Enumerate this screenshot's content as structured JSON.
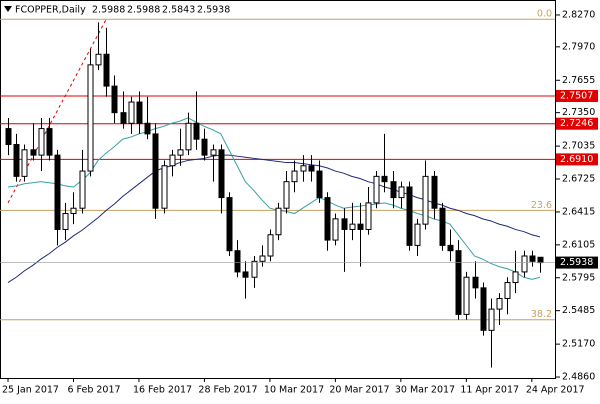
{
  "chart_data": {
    "type": "candlestick",
    "symbol": "FCOPPER,Daily",
    "categories": [
      "25 Jan 2017",
      null,
      null,
      null,
      null,
      null,
      null,
      null,
      "6 Feb 2017",
      null,
      null,
      null,
      null,
      null,
      null,
      null,
      "16 Feb 2017",
      null,
      null,
      null,
      null,
      null,
      null,
      null,
      "28 Feb 2017",
      null,
      null,
      null,
      null,
      null,
      null,
      null,
      "10 Mar 2017",
      null,
      null,
      null,
      null,
      null,
      null,
      null,
      "20 Mar 2017",
      null,
      null,
      null,
      null,
      null,
      null,
      null,
      "30 Mar 2017",
      null,
      null,
      null,
      null,
      null,
      null,
      null,
      "11 Apr 2017",
      null,
      null,
      null,
      null,
      null,
      null,
      null,
      "24 Apr 2017",
      null
    ],
    "open": [
      2.72,
      2.705,
      2.675,
      2.7,
      2.695,
      2.72,
      2.695,
      2.625,
      2.64,
      2.645,
      2.68,
      2.78,
      2.79,
      2.76,
      2.735,
      2.725,
      2.745,
      2.725,
      2.715,
      2.645,
      2.685,
      2.695,
      2.7,
      2.725,
      2.71,
      2.695,
      2.7,
      2.655,
      2.605,
      2.585,
      2.58,
      2.595,
      2.6,
      2.62,
      2.645,
      2.67,
      2.68,
      2.685,
      2.68,
      2.655,
      2.615,
      2.635,
      2.625,
      2.63,
      2.625,
      2.65,
      2.675,
      2.67,
      2.655,
      2.665,
      2.61,
      2.63,
      2.675,
      2.645,
      2.61,
      2.605,
      2.545,
      2.58,
      2.57,
      2.53,
      2.55,
      2.56,
      2.575,
      2.585,
      2.6,
      2.5988
    ],
    "high": [
      2.73,
      2.715,
      2.705,
      2.725,
      2.73,
      2.73,
      2.7,
      2.65,
      2.66,
      2.7,
      2.795,
      2.82,
      2.815,
      2.77,
      2.755,
      2.75,
      2.755,
      2.75,
      2.725,
      2.69,
      2.7,
      2.72,
      2.735,
      2.755,
      2.72,
      2.705,
      2.705,
      2.66,
      2.615,
      2.595,
      2.6,
      2.61,
      2.625,
      2.65,
      2.68,
      2.69,
      2.695,
      2.695,
      2.69,
      2.66,
      2.64,
      2.645,
      2.65,
      2.65,
      2.665,
      2.68,
      2.715,
      2.68,
      2.67,
      2.67,
      2.635,
      2.69,
      2.68,
      2.65,
      2.625,
      2.615,
      2.585,
      2.595,
      2.575,
      2.56,
      2.565,
      2.58,
      2.605,
      2.605,
      2.605,
      2.5988
    ],
    "low": [
      2.695,
      2.67,
      2.67,
      2.69,
      2.68,
      2.69,
      2.61,
      2.615,
      2.63,
      2.64,
      2.675,
      2.775,
      2.75,
      2.725,
      2.72,
      2.715,
      2.715,
      2.71,
      2.635,
      2.64,
      2.675,
      2.685,
      2.695,
      2.7,
      2.69,
      2.67,
      2.64,
      2.6,
      2.58,
      2.56,
      2.57,
      2.59,
      2.595,
      2.615,
      2.64,
      2.66,
      2.67,
      2.67,
      2.65,
      2.605,
      2.61,
      2.585,
      2.615,
      2.59,
      2.62,
      2.645,
      2.66,
      2.645,
      2.645,
      2.605,
      2.6,
      2.625,
      2.635,
      2.605,
      2.595,
      2.54,
      2.54,
      2.56,
      2.525,
      2.495,
      2.535,
      2.545,
      2.565,
      2.58,
      2.59,
      2.5843
    ],
    "close": [
      2.705,
      2.675,
      2.7,
      2.695,
      2.72,
      2.695,
      2.625,
      2.64,
      2.645,
      2.68,
      2.78,
      2.79,
      2.76,
      2.735,
      2.725,
      2.745,
      2.725,
      2.715,
      2.645,
      2.685,
      2.695,
      2.7,
      2.725,
      2.71,
      2.695,
      2.7,
      2.655,
      2.605,
      2.585,
      2.58,
      2.595,
      2.6,
      2.62,
      2.645,
      2.67,
      2.68,
      2.685,
      2.68,
      2.655,
      2.615,
      2.635,
      2.625,
      2.63,
      2.625,
      2.65,
      2.675,
      2.67,
      2.655,
      2.665,
      2.61,
      2.63,
      2.675,
      2.645,
      2.61,
      2.605,
      2.545,
      2.58,
      2.57,
      2.53,
      2.55,
      2.56,
      2.575,
      2.585,
      2.6,
      2.595,
      2.5938
    ],
    "series": [
      {
        "color": "#1f2a7a",
        "values": [
          2.575,
          2.58,
          2.586,
          2.591,
          2.597,
          2.602,
          2.608,
          2.613,
          2.619,
          2.624,
          2.63,
          2.636,
          2.643,
          2.649,
          2.656,
          2.662,
          2.668,
          2.674,
          2.68,
          2.683,
          2.685,
          2.688,
          2.69,
          2.691,
          2.692,
          2.694,
          2.695,
          2.695,
          2.694,
          2.693,
          2.692,
          2.691,
          2.69,
          2.689,
          2.688,
          2.688,
          2.687,
          2.686,
          2.685,
          2.683,
          2.68,
          2.678,
          2.675,
          2.673,
          2.67,
          2.668,
          2.665,
          2.663,
          2.66,
          2.658,
          2.655,
          2.653,
          2.65,
          2.648,
          2.645,
          2.643,
          2.64,
          2.638,
          2.635,
          2.633,
          2.63,
          2.628,
          2.625,
          2.623,
          2.62,
          2.618
        ]
      },
      {
        "color": "#3a9fa8",
        "values": [
          2.665,
          2.666,
          2.668,
          2.669,
          2.67,
          2.669,
          2.668,
          2.666,
          2.665,
          2.671,
          2.678,
          2.69,
          2.697,
          2.703,
          2.71,
          2.712,
          2.715,
          2.717,
          2.72,
          2.722,
          2.725,
          2.727,
          2.73,
          2.726,
          2.722,
          2.719,
          2.715,
          2.7,
          2.685,
          2.67,
          2.662,
          2.653,
          2.645,
          2.643,
          2.642,
          2.64,
          2.645,
          2.65,
          2.655,
          2.652,
          2.648,
          2.645,
          2.646,
          2.647,
          2.648,
          2.649,
          2.65,
          2.648,
          2.645,
          2.643,
          2.64,
          2.638,
          2.635,
          2.633,
          2.63,
          2.62,
          2.61,
          2.6,
          2.597,
          2.593,
          2.59,
          2.588,
          2.585,
          2.58,
          2.578,
          2.58
        ]
      }
    ],
    "ylim": [
      2.4851,
      2.8411
    ],
    "yticks": [
      {
        "value": 2.827,
        "label": "2.8270"
      },
      {
        "value": 2.797,
        "label": "2.7970"
      },
      {
        "value": 2.7655,
        "label": "2.7655"
      },
      {
        "value": 2.735,
        "label": "2.7350"
      },
      {
        "value": 2.7035,
        "label": "2.7035"
      },
      {
        "value": 2.6725,
        "label": "2.6725"
      },
      {
        "value": 2.6415,
        "label": "2.6415"
      },
      {
        "value": 2.6105,
        "label": "2.6105"
      },
      {
        "value": 2.5795,
        "label": "2.5795"
      },
      {
        "value": 2.5485,
        "label": "2.5485"
      },
      {
        "value": 2.517,
        "label": "2.5170"
      },
      {
        "value": 2.486,
        "label": "2.4860"
      }
    ],
    "levels": [
      {
        "value": 2.7507,
        "label": "2.7507",
        "color": "#e00000"
      },
      {
        "value": 2.7246,
        "label": "2.7246",
        "color": "#e00000"
      },
      {
        "value": 2.691,
        "label": "2.6910",
        "color": "#e00000"
      }
    ],
    "fibo_levels": [
      {
        "value": 2.823,
        "label": "0.0"
      },
      {
        "value": 2.643,
        "label": "23.6"
      },
      {
        "value": 2.54,
        "label": "38.2"
      }
    ],
    "fibo_color": "#c8a060",
    "fibo_trend": {
      "x": [
        0,
        12
      ],
      "y": [
        2.65,
        2.823
      ]
    }
  }
}
